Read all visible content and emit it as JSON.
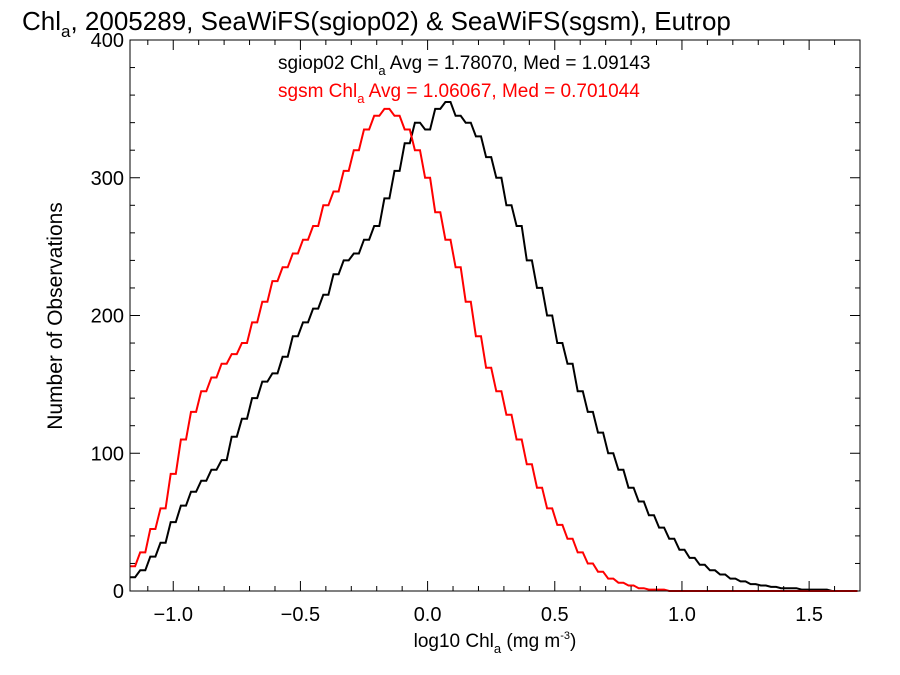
{
  "chart_data": {
    "type": "line",
    "title": {
      "prefix": "Chl",
      "sub": "a",
      "rest": ", 2005289, SeaWiFS(sgiop02) & SeaWiFS(sgsm), Eutrop"
    },
    "xlabel": {
      "prefix": "log10 Chl",
      "sub": "a",
      "rest": " (mg m",
      "sup": "-3",
      "close": ")"
    },
    "ylabel": "Number of Observations",
    "xlim": [
      -1.17,
      1.7
    ],
    "ylim": [
      0,
      400
    ],
    "xticks": [
      -1.0,
      -0.5,
      0.0,
      0.5,
      1.0,
      1.5
    ],
    "xtick_labels": [
      "−1.0",
      "−0.5",
      "0.0",
      "0.5",
      "1.0",
      "1.5"
    ],
    "yticks": [
      0,
      100,
      200,
      300,
      400
    ],
    "ytick_labels": [
      "0",
      "100",
      "200",
      "300",
      "400"
    ],
    "bin_width": 0.02,
    "grid": false,
    "legend": "top",
    "annotations": [
      {
        "prefix": "sgiop02 Chl",
        "sub": "a",
        "rest": " Avg = 1.78070, Med = 1.09143",
        "color": "#000000"
      },
      {
        "prefix": "sgsm Chl",
        "sub": "a",
        "rest": " Avg = 1.06067, Med = 0.701044",
        "color": "#ff0000"
      }
    ],
    "series": [
      {
        "color": "#000000",
        "x": [
          -1.16,
          -1.12,
          -1.08,
          -1.04,
          -1.0,
          -0.96,
          -0.92,
          -0.88,
          -0.84,
          -0.8,
          -0.76,
          -0.72,
          -0.68,
          -0.64,
          -0.6,
          -0.56,
          -0.52,
          -0.48,
          -0.44,
          -0.4,
          -0.36,
          -0.32,
          -0.28,
          -0.24,
          -0.2,
          -0.16,
          -0.12,
          -0.08,
          -0.04,
          0.0,
          0.04,
          0.08,
          0.12,
          0.16,
          0.2,
          0.24,
          0.28,
          0.32,
          0.36,
          0.4,
          0.44,
          0.48,
          0.52,
          0.56,
          0.6,
          0.64,
          0.68,
          0.72,
          0.76,
          0.8,
          0.84,
          0.88,
          0.92,
          0.96,
          1.0,
          1.04,
          1.08,
          1.12,
          1.16,
          1.2,
          1.24,
          1.28,
          1.32,
          1.36,
          1.4,
          1.44,
          1.48,
          1.52,
          1.56,
          1.6,
          1.64,
          1.68
        ],
        "values": [
          10,
          15,
          25,
          35,
          50,
          62,
          72,
          80,
          88,
          95,
          112,
          125,
          140,
          152,
          158,
          170,
          185,
          195,
          205,
          215,
          230,
          240,
          245,
          255,
          265,
          285,
          305,
          325,
          340,
          335,
          350,
          355,
          345,
          340,
          330,
          315,
          300,
          280,
          265,
          240,
          220,
          200,
          180,
          165,
          145,
          130,
          115,
          100,
          88,
          75,
          65,
          55,
          46,
          38,
          30,
          24,
          19,
          15,
          12,
          9,
          7,
          5,
          4,
          3,
          2,
          2,
          1,
          1,
          1,
          0,
          0,
          0
        ]
      },
      {
        "color": "#ff0000",
        "x": [
          -1.16,
          -1.12,
          -1.08,
          -1.04,
          -1.0,
          -0.96,
          -0.92,
          -0.88,
          -0.84,
          -0.8,
          -0.76,
          -0.72,
          -0.68,
          -0.64,
          -0.6,
          -0.56,
          -0.52,
          -0.48,
          -0.44,
          -0.4,
          -0.36,
          -0.32,
          -0.28,
          -0.24,
          -0.2,
          -0.16,
          -0.12,
          -0.08,
          -0.04,
          0.0,
          0.04,
          0.08,
          0.12,
          0.16,
          0.2,
          0.24,
          0.28,
          0.32,
          0.36,
          0.4,
          0.44,
          0.48,
          0.52,
          0.56,
          0.6,
          0.64,
          0.68,
          0.72,
          0.76,
          0.8,
          0.84,
          0.88,
          0.92,
          0.96,
          1.0,
          1.04,
          1.08,
          1.12,
          1.16,
          1.2,
          1.24,
          1.28,
          1.32,
          1.36,
          1.4,
          1.44,
          1.48,
          1.52,
          1.56,
          1.6,
          1.64,
          1.68
        ],
        "values": [
          18,
          28,
          45,
          60,
          85,
          110,
          130,
          145,
          155,
          165,
          172,
          180,
          195,
          210,
          225,
          235,
          245,
          255,
          265,
          280,
          290,
          305,
          320,
          335,
          345,
          350,
          345,
          335,
          320,
          300,
          275,
          255,
          235,
          210,
          185,
          162,
          145,
          128,
          110,
          92,
          75,
          60,
          48,
          38,
          28,
          20,
          14,
          9,
          6,
          4,
          2,
          1,
          1,
          0,
          0,
          0,
          0,
          0,
          0,
          0,
          0,
          0,
          0,
          0,
          0,
          0,
          0,
          0,
          0,
          0,
          0,
          0
        ]
      }
    ]
  }
}
